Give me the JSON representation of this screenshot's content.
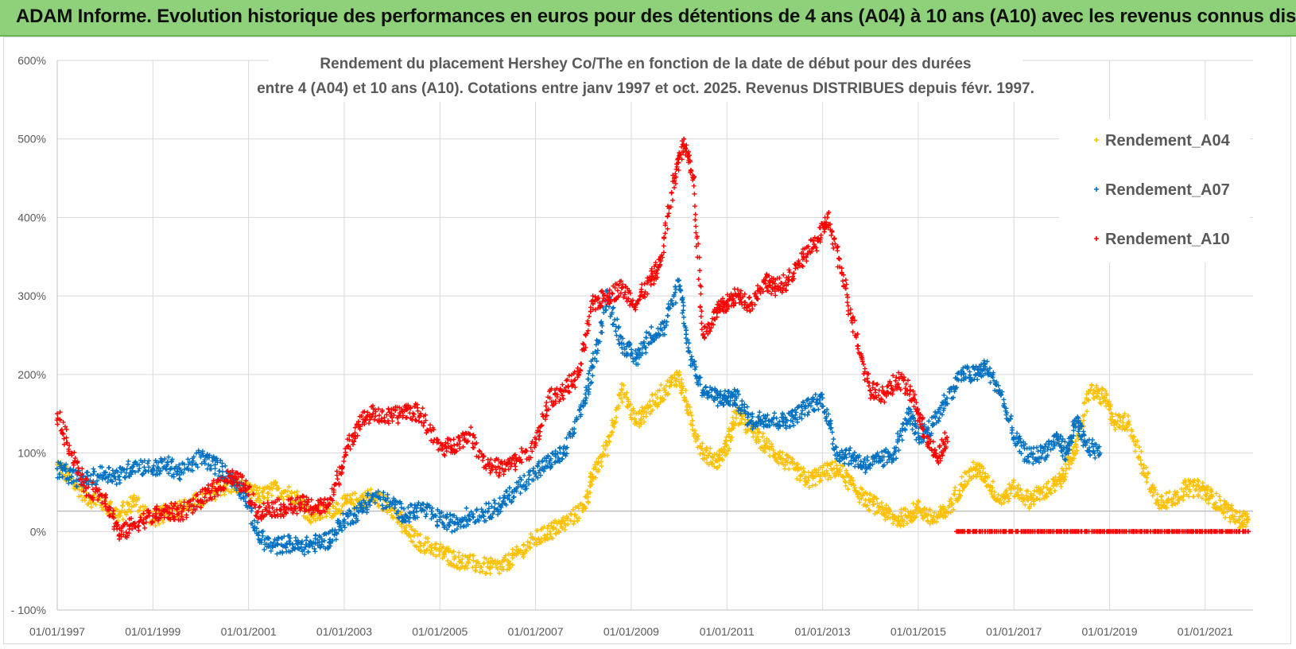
{
  "header": {
    "title": "ADAM Informe. Evolution historique des performances en euros pour des détentions de 4 ans (A04) à 10 ans (A10) avec les revenus connus distribués"
  },
  "chart_data": {
    "type": "scatter",
    "title_line1": "Rendement du placement Hershey Co/The en fonction de la date de début pour des durées",
    "title_line2": "entre 4 (A04) et 10 ans (A10). Cotations entre janv 1997 et oct. 2025. Revenus DISTRIBUES depuis févr. 1997.",
    "xlabel": "",
    "ylabel": "",
    "xlim": [
      1997.0,
      2022.0
    ],
    "ylim": [
      -100,
      600
    ],
    "y_ticks": [
      -100,
      0,
      100,
      200,
      300,
      400,
      500,
      600
    ],
    "y_tick_labels": [
      "- 100%",
      "0%",
      "100%",
      "200%",
      "300%",
      "400%",
      "500%",
      "600%"
    ],
    "x_ticks": [
      1997,
      1999,
      2001,
      2003,
      2005,
      2007,
      2009,
      2011,
      2013,
      2015,
      2017,
      2019,
      2021
    ],
    "x_tick_labels": [
      "01/01/1997",
      "01/01/1999",
      "01/01/2001",
      "01/01/2003",
      "01/01/2005",
      "01/01/2007",
      "01/01/2009",
      "01/01/2011",
      "01/01/2013",
      "01/01/2015",
      "01/01/2017",
      "01/01/2019",
      "01/01/2021"
    ],
    "reference_line": 26,
    "grid": true,
    "legend_position": "right",
    "colors": {
      "A04": "#ffc000",
      "A07": "#0070c0",
      "A10": "#ff0000",
      "grid": "#d9d9d9",
      "ref": "#bfbfbf"
    },
    "series": [
      {
        "name": "Rendement_A04",
        "x": [
          1997.0,
          1997.3,
          1997.6,
          1998.0,
          1998.3,
          1998.6,
          1999.0,
          1999.3,
          1999.6,
          2000.0,
          2000.4,
          2000.7,
          2001.0,
          2001.3,
          2001.6,
          2002.0,
          2002.3,
          2002.6,
          2003.0,
          2003.3,
          2003.6,
          2004.0,
          2004.3,
          2004.6,
          2005.0,
          2005.3,
          2005.6,
          2006.0,
          2006.3,
          2006.6,
          2007.0,
          2007.3,
          2007.6,
          2008.0,
          2008.2,
          2008.5,
          2008.8,
          2009.1,
          2009.4,
          2009.7,
          2010.0,
          2010.2,
          2010.5,
          2010.8,
          2011.0,
          2011.2,
          2011.5,
          2011.8,
          2012.1,
          2012.4,
          2012.7,
          2013.0,
          2013.3,
          2013.6,
          2013.9,
          2014.2,
          2014.5,
          2014.8,
          2015.0,
          2015.3,
          2015.6,
          2015.9,
          2016.2,
          2016.4,
          2016.7,
          2017.0,
          2017.3,
          2017.6,
          2017.9,
          2018.1,
          2018.3,
          2018.6,
          2018.9,
          2019.1,
          2019.4,
          2019.7,
          2020.0,
          2020.3,
          2020.6,
          2020.9,
          2021.1,
          2021.4,
          2021.7,
          2021.9
        ],
        "values": [
          85,
          65,
          45,
          35,
          20,
          40,
          15,
          25,
          30,
          40,
          55,
          60,
          50,
          45,
          55,
          45,
          20,
          25,
          35,
          40,
          45,
          30,
          0,
          -15,
          -25,
          -35,
          -40,
          -45,
          -45,
          -30,
          -10,
          0,
          10,
          30,
          70,
          110,
          180,
          140,
          160,
          180,
          200,
          150,
          100,
          90,
          110,
          150,
          130,
          110,
          95,
          80,
          65,
          75,
          80,
          60,
          40,
          30,
          15,
          20,
          30,
          15,
          25,
          60,
          80,
          70,
          40,
          55,
          40,
          50,
          60,
          80,
          110,
          180,
          170,
          140,
          140,
          80,
          40,
          40,
          55,
          55,
          45,
          30,
          15,
          15
        ]
      },
      {
        "name": "Rendement_A07",
        "x": [
          1997.0,
          1997.3,
          1997.6,
          1998.0,
          1998.3,
          1998.6,
          1999.0,
          1999.3,
          1999.6,
          2000.0,
          2000.3,
          2000.6,
          2000.9,
          2001.2,
          2001.5,
          2001.8,
          2002.1,
          2002.4,
          2002.7,
          2003.0,
          2003.3,
          2003.6,
          2004.0,
          2004.3,
          2004.6,
          2005.0,
          2005.3,
          2005.6,
          2006.0,
          2006.3,
          2006.6,
          2007.0,
          2007.3,
          2007.6,
          2008.0,
          2008.2,
          2008.5,
          2008.8,
          2009.1,
          2009.4,
          2009.7,
          2010.0,
          2010.2,
          2010.5,
          2010.8,
          2011.0,
          2011.2,
          2011.5,
          2011.8,
          2012.1,
          2012.4,
          2012.7,
          2013.0,
          2013.3,
          2013.6,
          2013.9,
          2014.2,
          2014.5,
          2014.8,
          2015.0,
          2015.3,
          2015.6,
          2015.9,
          2016.2,
          2016.4,
          2016.7,
          2017.0,
          2017.3,
          2017.6,
          2017.9,
          2018.1,
          2018.3,
          2018.5,
          2018.8
        ],
        "values": [
          80,
          70,
          65,
          75,
          70,
          85,
          80,
          85,
          75,
          95,
          85,
          70,
          50,
          -5,
          -20,
          -15,
          -20,
          -15,
          -10,
          15,
          25,
          45,
          35,
          20,
          30,
          15,
          10,
          20,
          25,
          35,
          55,
          75,
          90,
          100,
          160,
          210,
          300,
          240,
          220,
          250,
          260,
          320,
          230,
          180,
          170,
          170,
          170,
          140,
          145,
          140,
          145,
          160,
          170,
          100,
          95,
          85,
          90,
          100,
          150,
          120,
          135,
          170,
          200,
          200,
          210,
          180,
          120,
          95,
          100,
          120,
          100,
          140,
          110,
          100
        ]
      },
      {
        "name": "Rendement_A10",
        "x": [
          1997.0,
          1997.3,
          1997.6,
          1998.0,
          1998.3,
          1998.6,
          1999.0,
          1999.3,
          1999.6,
          2000.0,
          2000.3,
          2000.6,
          2000.9,
          2001.2,
          2001.5,
          2001.8,
          2002.1,
          2002.4,
          2002.7,
          2003.0,
          2003.3,
          2003.6,
          2004.0,
          2004.3,
          2004.6,
          2005.0,
          2005.3,
          2005.6,
          2006.0,
          2006.3,
          2006.6,
          2007.0,
          2007.3,
          2007.6,
          2007.9,
          2008.2,
          2008.5,
          2008.8,
          2009.1,
          2009.4,
          2009.6,
          2009.9,
          2010.1,
          2010.3,
          2010.5,
          2010.8,
          2011.0,
          2011.2,
          2011.5,
          2011.8,
          2012.0,
          2012.3,
          2012.6,
          2012.9,
          2013.1,
          2013.4,
          2013.7,
          2014.0,
          2014.3,
          2014.6,
          2014.9,
          2015.1,
          2015.4,
          2015.6
        ],
        "values": [
          150,
          100,
          55,
          45,
          -5,
          10,
          20,
          25,
          25,
          40,
          55,
          70,
          60,
          25,
          30,
          30,
          35,
          30,
          35,
          95,
          140,
          150,
          145,
          155,
          150,
          105,
          110,
          125,
          85,
          80,
          90,
          110,
          170,
          180,
          200,
          290,
          300,
          310,
          290,
          320,
          340,
          450,
          500,
          450,
          250,
          280,
          290,
          300,
          290,
          320,
          310,
          320,
          350,
          370,
          400,
          330,
          250,
          180,
          175,
          195,
          170,
          130,
          90,
          120
        ]
      },
      {
        "name": "Rendement_A10",
        "x": [
          2015.8,
          2016.3,
          2016.8,
          2017.3,
          2017.8,
          2018.3,
          2018.8,
          2019.3,
          2019.8,
          2020.3,
          2020.8,
          2021.3,
          2021.9
        ],
        "values": [
          0,
          0,
          0,
          0,
          0,
          0,
          0,
          0,
          0,
          0,
          0,
          0,
          0
        ]
      }
    ]
  }
}
